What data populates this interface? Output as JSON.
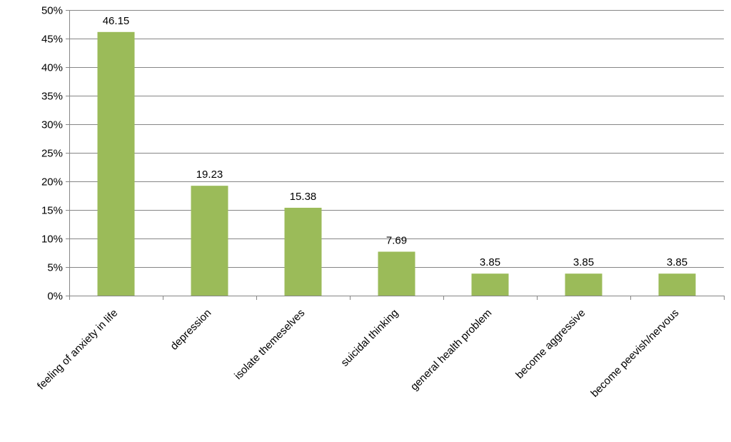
{
  "chart_data": {
    "type": "bar",
    "title": "",
    "xlabel": "",
    "ylabel": "",
    "categories": [
      "feeling of anxiety in life",
      "depression",
      "isolate themeselves",
      "suicidal thinking",
      "general health problem",
      "become aggressive",
      "become peevish/nervous"
    ],
    "values": [
      46.15,
      19.23,
      15.38,
      7.69,
      3.85,
      3.85,
      3.85
    ],
    "data_labels": [
      "46.15",
      "19.23",
      "15.38",
      "7.69",
      "3.85",
      "3.85",
      "3.85"
    ],
    "ylim": [
      0,
      50
    ],
    "y_ticks": [
      0,
      5,
      10,
      15,
      20,
      25,
      30,
      35,
      40,
      45,
      50
    ],
    "y_tick_labels": [
      "0%",
      "5%",
      "10%",
      "15%",
      "20%",
      "25%",
      "30%",
      "35%",
      "40%",
      "45%",
      "50%"
    ],
    "grid": true,
    "legend": "none",
    "bar_color": "#9BBB59",
    "grid_color": "#868686"
  }
}
